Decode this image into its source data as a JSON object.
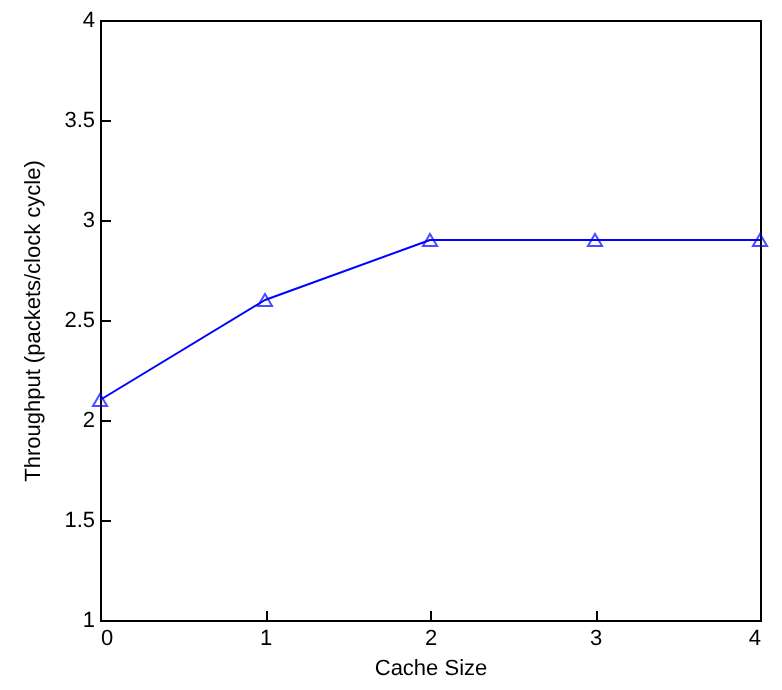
{
  "chart_data": {
    "type": "line",
    "xlabel": "Cache Size",
    "ylabel": "Throughput (packets/clock cycle)",
    "x": [
      0,
      1,
      2,
      3,
      4
    ],
    "series": [
      {
        "color": "#0000ff",
        "values": [
          2.1,
          2.6,
          2.9,
          2.9,
          2.9
        ]
      }
    ],
    "xlim": [
      0,
      4
    ],
    "xticks": [
      0,
      1,
      2,
      3,
      4
    ],
    "ylim": [
      1,
      4
    ],
    "yticks": [
      1,
      1.5,
      2,
      2.5,
      3,
      3.5,
      4
    ],
    "marker": "triangle",
    "line_style": "solid"
  }
}
